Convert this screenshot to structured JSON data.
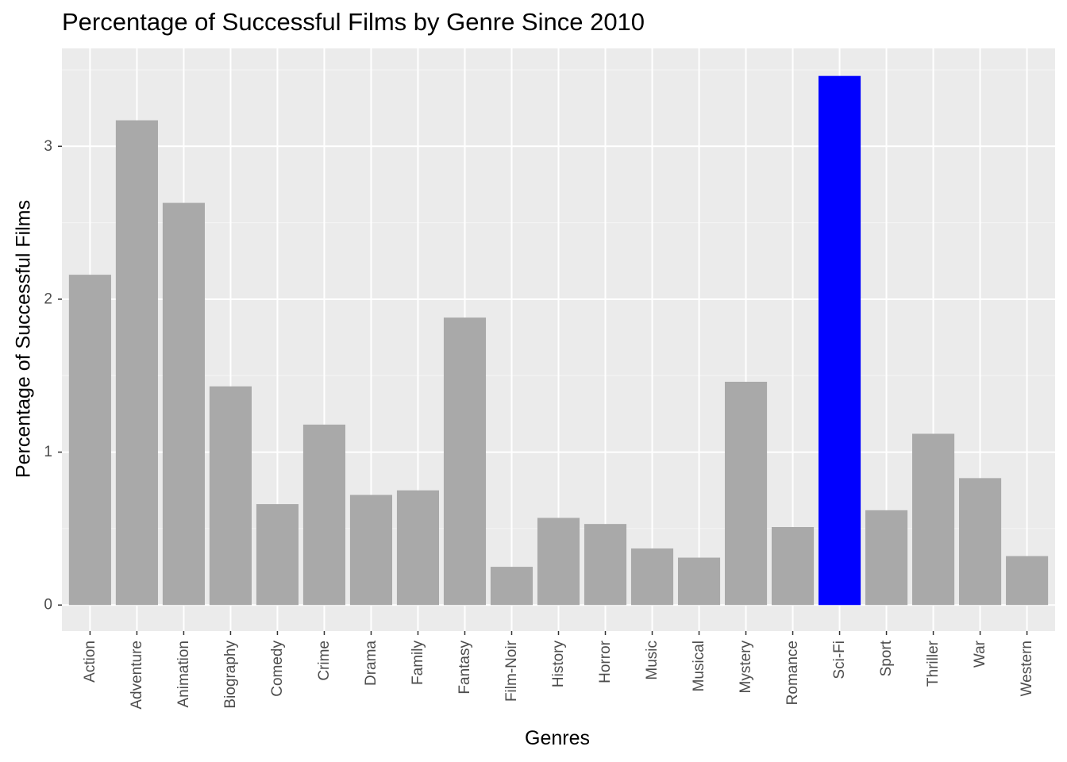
{
  "chart_data": {
    "type": "bar",
    "title": "Percentage of Successful Films by Genre Since 2010",
    "xlabel": "Genres",
    "ylabel": "Percentage of Successful Films",
    "categories": [
      "Action",
      "Adventure",
      "Animation",
      "Biography",
      "Comedy",
      "Crime",
      "Drama",
      "Family",
      "Fantasy",
      "Film-Noir",
      "History",
      "Horror",
      "Music",
      "Musical",
      "Mystery",
      "Romance",
      "Sci-Fi",
      "Sport",
      "Thriller",
      "War",
      "Western"
    ],
    "values": [
      2.16,
      3.17,
      2.63,
      1.43,
      0.66,
      1.18,
      0.72,
      0.75,
      1.88,
      0.25,
      0.57,
      0.53,
      0.37,
      0.31,
      1.46,
      0.51,
      3.46,
      0.62,
      1.12,
      0.83,
      0.32
    ],
    "highlight_category": "Sci-Fi",
    "ylim": [
      -0.17,
      3.64
    ],
    "y_ticks": [
      0,
      1,
      2,
      3
    ],
    "grid": true,
    "colors": {
      "bar": "#A9A9A9",
      "highlight": "#0000FF",
      "panel_background": "#EBEBEB",
      "grid_major": "#FFFFFF",
      "grid_minor": "#F5F5F5",
      "tick_text": "#4D4D4D",
      "tick_mark": "#333333"
    }
  }
}
